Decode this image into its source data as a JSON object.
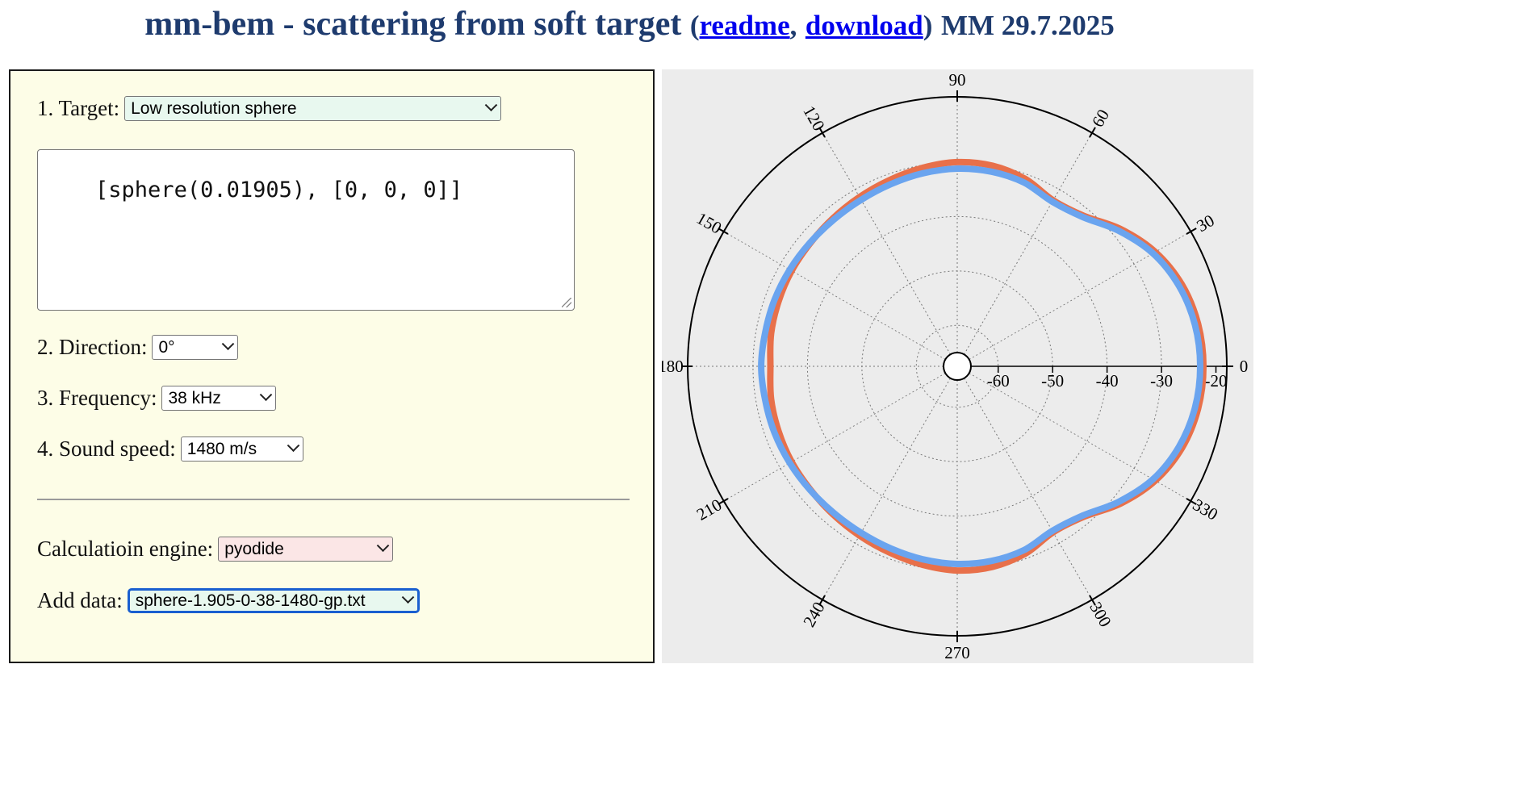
{
  "header": {
    "title": "mm-bem - scattering from soft target",
    "paren_open": "(",
    "readme_link": "readme",
    "comma": ",",
    "download_link": "download",
    "paren_close": ")",
    "author_date": "MM 29.7.2025"
  },
  "form": {
    "target": {
      "label": "1. Target:",
      "value": "Low resolution sphere",
      "bg": "#e8f8ef"
    },
    "definition": "[sphere(0.01905), [0, 0, 0]]",
    "direction": {
      "label": "2. Direction:",
      "value": "0°"
    },
    "frequency": {
      "label": "3. Frequency:",
      "value": "38 kHz"
    },
    "sound_speed": {
      "label": "4. Sound speed:",
      "value": "1480 m/s"
    },
    "engine": {
      "label": "Calculatioin engine:",
      "value": "pyodide",
      "bg": "#fbe6e6"
    },
    "add_data": {
      "label": "Add data:",
      "value": "sphere-1.905-0-38-1480-gp.txt",
      "bg": "#e8f8ef",
      "focus_color": "#1a5fd0"
    }
  },
  "chart_data": {
    "type": "line",
    "coordinate_system": "polar",
    "angular_ticks": [
      "0",
      "30",
      "60",
      "90",
      "120",
      "150",
      "180",
      "210",
      "240",
      "270",
      "300",
      "330"
    ],
    "radial_ticks": [
      "-60",
      "-50",
      "-40",
      "-30",
      "-20"
    ],
    "radial_range": [
      -65,
      -18
    ],
    "grid": true,
    "series": [
      {
        "color": "#e8704a",
        "angle_deg": [
          0,
          10,
          20,
          30,
          40,
          50,
          60,
          70,
          80,
          90,
          100,
          110,
          120,
          130,
          140,
          150,
          160,
          170,
          180
        ],
        "r_db": [
          -22.3,
          -22.6,
          -23.6,
          -25.5,
          -28.3,
          -31.4,
          -32.3,
          -30.9,
          -30.1,
          -30.0,
          -30.5,
          -31.1,
          -31.6,
          -32.0,
          -32.3,
          -32.4,
          -32.6,
          -32.8,
          -33.2
        ]
      },
      {
        "color": "#6aa4ef",
        "angle_deg": [
          0,
          10,
          20,
          30,
          40,
          50,
          60,
          70,
          80,
          90,
          100,
          110,
          120,
          130,
          140,
          150,
          160,
          170,
          180
        ],
        "r_db": [
          -22.9,
          -23.2,
          -24.2,
          -26.0,
          -28.8,
          -31.7,
          -32.6,
          -31.6,
          -31.2,
          -31.2,
          -31.5,
          -31.9,
          -32.2,
          -32.3,
          -32.2,
          -32.0,
          -31.8,
          -31.7,
          -31.5
        ]
      }
    ]
  }
}
